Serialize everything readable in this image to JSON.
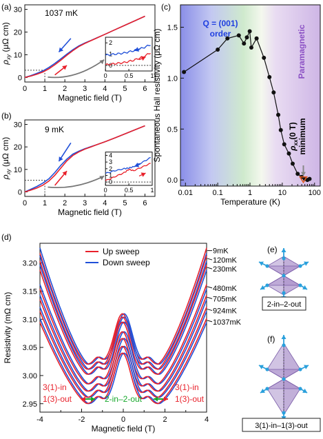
{
  "panels": {
    "a": {
      "letter": "(a)",
      "temp": "1037 mK"
    },
    "b": {
      "letter": "(b)",
      "temp": "9 mK"
    },
    "c": {
      "letter": "(c)"
    },
    "d": {
      "letter": "(d)"
    },
    "e": {
      "letter": "(e)",
      "caption": "2-in–2-out"
    },
    "f": {
      "letter": "(f)",
      "caption": "3(1)-in–1(3)-out"
    }
  },
  "colors": {
    "up": "#e8202a",
    "down": "#1f4fd8",
    "black": "#111111",
    "q_label": "#1f3fe0",
    "para_label": "#8a4fc4",
    "min_marker": "#e05a20",
    "green_annot": "#16a82b",
    "tetra": "#9a7cc0",
    "spin": "#2aa0dc"
  },
  "chart_data": [
    {
      "id": "a",
      "type": "line",
      "xlabel": "Magnetic field (T)",
      "ylabel": "ρxy (μΩ cm)",
      "xlim": [
        0,
        6.5
      ],
      "ylim": [
        -2,
        32
      ],
      "xticks": [
        0,
        1,
        2,
        3,
        4,
        5,
        6
      ],
      "yticks": [
        0,
        10,
        20,
        30
      ],
      "annotation": "1037 mK",
      "series": [
        {
          "name": "",
          "color": "#e8202a",
          "x": [
            0,
            0.3,
            0.6,
            0.9,
            1.2,
            1.5,
            1.8,
            2.1,
            2.4,
            2.7,
            3.0,
            3.3,
            3.6,
            4.0,
            4.5,
            5.0,
            5.5,
            6.0
          ],
          "y": [
            0,
            0.6,
            1.4,
            2.4,
            3.8,
            5.6,
            7.6,
            9.8,
            11.8,
            13.6,
            15.0,
            16.2,
            17.4,
            19.0,
            21.0,
            23.0,
            25.0,
            27.0
          ]
        },
        {
          "name": "",
          "color": "#1f4fd8",
          "x": [
            0,
            0.3,
            0.6,
            0.9,
            1.2,
            1.5,
            1.8,
            2.1,
            2.4,
            2.7,
            3.0,
            3.3,
            3.6,
            4.0,
            4.5,
            5.0,
            5.5,
            6.0
          ],
          "y": [
            0,
            0.8,
            1.8,
            2.9,
            4.4,
            6.2,
            8.2,
            10.3,
            12.2,
            13.9,
            15.2,
            16.3,
            17.5,
            19.0,
            21.0,
            23.0,
            25.0,
            27.0
          ]
        }
      ],
      "dotted_level": 3.2,
      "inset": {
        "xlim": [
          0,
          1.0
        ],
        "ylim": [
          -0.5,
          2.5
        ],
        "xticks": [
          0,
          0.5,
          1
        ],
        "yticks": [
          0,
          1,
          2
        ],
        "series": [
          {
            "color": "#e8202a",
            "x": [
              0,
              0.2,
              0.4,
              0.6,
              0.8,
              1.0
            ],
            "y": [
              0.05,
              0.15,
              0.25,
              0.45,
              0.75,
              1.2
            ]
          },
          {
            "color": "#1f4fd8",
            "x": [
              0,
              0.2,
              0.4,
              0.6,
              0.8,
              1.0
            ],
            "y": [
              0.9,
              1.0,
              1.1,
              1.3,
              1.55,
              1.9
            ]
          }
        ]
      }
    },
    {
      "id": "b",
      "type": "line",
      "xlabel": "Magnetic field (T)",
      "ylabel": "ρxy (μΩ cm)",
      "xlim": [
        0,
        6.5
      ],
      "ylim": [
        -2,
        32
      ],
      "xticks": [
        0,
        1,
        2,
        3,
        4,
        5,
        6
      ],
      "yticks": [
        0,
        10,
        20,
        30
      ],
      "annotation": "9 mK",
      "series": [
        {
          "name": "",
          "color": "#e8202a",
          "x": [
            0,
            0.3,
            0.6,
            0.9,
            1.2,
            1.5,
            1.8,
            2.1,
            2.4,
            2.7,
            3.0,
            3.3,
            3.6,
            4.0,
            4.5,
            5.0,
            5.5,
            6.0
          ],
          "y": [
            0,
            0.8,
            1.7,
            3.0,
            4.8,
            7.4,
            10.6,
            13.8,
            16.2,
            17.8,
            19.0,
            20.0,
            21.0,
            22.3,
            24.0,
            25.8,
            27.6,
            29.4
          ]
        },
        {
          "name": "",
          "color": "#1f4fd8",
          "x": [
            0,
            0.3,
            0.6,
            0.9,
            1.2,
            1.5,
            1.8,
            2.1,
            2.4,
            2.7,
            3.0,
            3.3,
            3.6,
            4.0,
            4.5,
            5.0,
            5.5,
            6.0
          ],
          "y": [
            0,
            1.2,
            2.4,
            3.9,
            5.8,
            8.6,
            11.8,
            14.6,
            16.8,
            18.1,
            19.2,
            20.1,
            21.0,
            22.3,
            24.0,
            25.8,
            27.6,
            29.4
          ]
        }
      ],
      "dotted_level": 5.2,
      "inset": {
        "xlim": [
          0,
          1.0
        ],
        "ylim": [
          -0.5,
          4.5
        ],
        "xticks": [
          0,
          0.5,
          1
        ],
        "yticks": [
          0,
          1,
          2,
          3,
          4
        ],
        "series": [
          {
            "color": "#e8202a",
            "x": [
              0,
              0.2,
              0.4,
              0.5,
              0.6,
              0.8,
              1.0
            ],
            "y": [
              0.2,
              0.8,
              1.4,
              1.9,
              1.7,
              2.3,
              2.9
            ]
          },
          {
            "color": "#1f4fd8",
            "x": [
              0,
              0.2,
              0.4,
              0.5,
              0.6,
              0.8,
              1.0
            ],
            "y": [
              1.3,
              1.7,
              2.0,
              2.1,
              2.3,
              3.0,
              3.8
            ]
          }
        ]
      }
    },
    {
      "id": "c",
      "type": "scatter",
      "xlabel": "Temperature (K)",
      "ylabel": "Spontaneous Hall resistivity (μΩ cm)",
      "xscale": "log",
      "xlim": [
        0.007,
        150
      ],
      "ylim": [
        -0.06,
        1.72
      ],
      "xticks": [
        0.01,
        0.1,
        1,
        10,
        100
      ],
      "xticklabels": [
        "0.01",
        "0.1",
        "1",
        "10",
        "100"
      ],
      "yticks": [
        0.0,
        0.5,
        1.0,
        1.5
      ],
      "yticklabels": [
        "0.0",
        "0.5",
        "1.0",
        "1.5"
      ],
      "labels": {
        "order": [
          "Q = (001)",
          "order"
        ],
        "para": "Paramagnetic",
        "minimum": [
          "ρxx(0 T)",
          "minimum"
        ]
      },
      "series": [
        {
          "name": "",
          "color": "#111111",
          "x": [
            0.009,
            0.1,
            0.2,
            0.45,
            0.65,
            0.8,
            0.98,
            1.1,
            1.6,
            2.7,
            4.0,
            5.4,
            7.5,
            9.0,
            11.5,
            16,
            21,
            30,
            40,
            50,
            60,
            70
          ],
          "y": [
            1.06,
            1.28,
            1.39,
            1.42,
            1.34,
            1.4,
            1.46,
            1.3,
            1.39,
            1.2,
            1.01,
            0.86,
            0.64,
            0.49,
            0.35,
            0.26,
            0.16,
            0.06,
            0.03,
            0.01,
            0.0,
            0.01
          ]
        }
      ],
      "minimum_marker": {
        "x": 45,
        "y": 0.01
      }
    },
    {
      "id": "d",
      "type": "line",
      "xlabel": "Magnetic field (T)",
      "ylabel": "Resistivity (mΩ cm)",
      "xlim": [
        -4,
        4
      ],
      "ylim": [
        2.935,
        3.235
      ],
      "xticks": [
        -4,
        -2,
        0,
        2,
        4
      ],
      "yticks": [
        2.95,
        3.0,
        3.05,
        3.1,
        3.15,
        3.2
      ],
      "yticklabels": [
        "2.95",
        "3.00",
        "3.05",
        "3.10",
        "3.15",
        "3.20"
      ],
      "legend": {
        "position": "top",
        "entries": [
          {
            "label": "Up sweep",
            "color": "#e8202a"
          },
          {
            "label": "Down sweep",
            "color": "#1f4fd8"
          }
        ]
      },
      "annotations": {
        "left_top": "3(1)-in",
        "left_bottom": "1(3)-out",
        "right_top": "3(1)-in",
        "right_bottom": "1(3)-out",
        "center": "2-in–2-out"
      },
      "temperatures": [
        {
          "label": "9mK",
          "edge": 3.222,
          "min": 3.02,
          "center": 3.11
        },
        {
          "label": "120mK",
          "edge": 3.208,
          "min": 3.011,
          "center": 3.104
        },
        {
          "label": "230mK",
          "edge": 3.192,
          "min": 3.002,
          "center": 3.095
        },
        {
          "label": "480mK",
          "edge": 3.158,
          "min": 2.985,
          "center": 3.078
        },
        {
          "label": "705mK",
          "edge": 3.139,
          "min": 2.972,
          "center": 3.066
        },
        {
          "label": "924mK",
          "edge": 3.118,
          "min": 2.961,
          "center": 3.052
        },
        {
          "label": "1037mK",
          "edge": 3.098,
          "min": 2.95,
          "center": 3.04
        }
      ]
    }
  ]
}
